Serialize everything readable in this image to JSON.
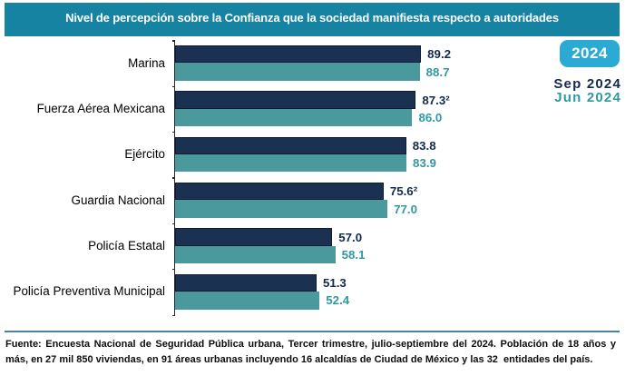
{
  "header": {
    "title": "Nivel de percepción sobre la Confianza que la sociedad manifiesta respecto a autoridades"
  },
  "legend": {
    "year_badge": "2024",
    "series": [
      {
        "label": "Sep 2024",
        "color": "#13294d"
      },
      {
        "label": "Jun 2024",
        "color": "#2f98a1"
      }
    ]
  },
  "chart_data": {
    "type": "bar",
    "orientation": "horizontal",
    "title": "Nivel de percepción sobre la Confianza que la sociedad manifiesta respecto a autoridades",
    "categories": [
      "Marina",
      "Fuerza Aérea Mexicana",
      "Ejército",
      "Guardia Nacional",
      "Policía Estatal",
      "Policía Preventiva Municipal"
    ],
    "series": [
      {
        "name": "Sep 2024",
        "color": "#1a3152",
        "edge_color": "#0e1a36",
        "label_color": "#13294d",
        "values": [
          89.2,
          87.3,
          83.8,
          75.6,
          57.0,
          51.3
        ],
        "labels": [
          "89.2",
          "87.3²",
          "83.8",
          "75.6²",
          "57.0",
          "51.3"
        ]
      },
      {
        "name": "Jun 2024",
        "color": "#4a999d",
        "edge_color": "#4a999d",
        "label_color": "#2f98a1",
        "values": [
          88.7,
          86.0,
          83.9,
          77.0,
          58.1,
          52.4
        ],
        "labels": [
          "88.7",
          "86.0",
          "83.9",
          "77.0",
          "58.1",
          "52.4"
        ]
      }
    ],
    "xlim": [
      0,
      100
    ],
    "grid": false,
    "legend_position": "top-right",
    "value_labels": "outside-end"
  },
  "footer": {
    "line1": "Fuente: Encuesta Nacional de Seguridad Pública urbana, Tercer trimestre, julio-septiembre del 2024. Población de 18 años y",
    "line2": "más, en 27 mil 850 viviendas, en 91 áreas urbanas incluyendo 16 alcaldías de Ciudad de México y las 32  entidades del país."
  },
  "colors": {
    "title_bar_bg": "#1683a3",
    "title_text": "#ffffff",
    "badge_bg": "#2baad3",
    "badge_text": "#ffffff",
    "sep_bar": "#1a3152",
    "jun_bar": "#4a999d",
    "divider": "#4e819b",
    "axis": "#262626"
  }
}
